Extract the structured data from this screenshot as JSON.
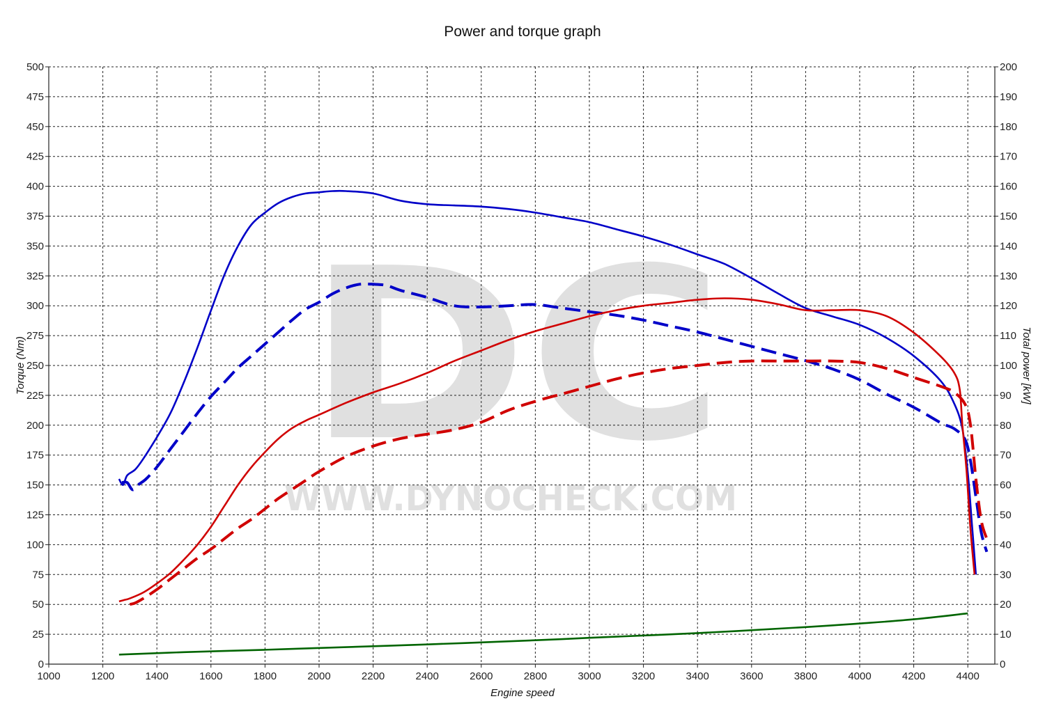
{
  "chart_data": {
    "type": "line",
    "title": "Power and torque graph",
    "xlabel": "Engine speed",
    "ylabel_left": "Torque (Nm)",
    "ylabel_right": "Total power [kW]",
    "xlim": [
      1000,
      4500
    ],
    "ylim_left": [
      0,
      500
    ],
    "ylim_right": [
      0,
      200
    ],
    "x_ticks": [
      1000,
      1200,
      1400,
      1600,
      1800,
      2000,
      2200,
      2400,
      2600,
      2800,
      3000,
      3200,
      3400,
      3600,
      3800,
      4000,
      4200,
      4400
    ],
    "y_ticks_left": [
      0,
      25,
      50,
      75,
      100,
      125,
      150,
      175,
      200,
      225,
      250,
      275,
      300,
      325,
      350,
      375,
      400,
      425,
      450,
      475,
      500
    ],
    "y_ticks_right": [
      0,
      10,
      20,
      30,
      40,
      50,
      60,
      70,
      80,
      90,
      100,
      110,
      120,
      130,
      140,
      150,
      160,
      170,
      180,
      190,
      200
    ],
    "grid": true,
    "watermark": {
      "logo": "DC",
      "url": "WWW.DYNOCHECK.COM"
    },
    "series": [
      {
        "axis": "left",
        "color": "#0000c8",
        "dash": false,
        "points": [
          [
            1260,
            155
          ],
          [
            1275,
            150
          ],
          [
            1290,
            158
          ],
          [
            1320,
            163
          ],
          [
            1350,
            172
          ],
          [
            1400,
            190
          ],
          [
            1450,
            210
          ],
          [
            1500,
            236
          ],
          [
            1550,
            265
          ],
          [
            1600,
            296
          ],
          [
            1650,
            326
          ],
          [
            1700,
            350
          ],
          [
            1750,
            368
          ],
          [
            1800,
            378
          ],
          [
            1850,
            386
          ],
          [
            1900,
            391
          ],
          [
            1950,
            394
          ],
          [
            2000,
            395
          ],
          [
            2050,
            396
          ],
          [
            2100,
            396
          ],
          [
            2200,
            394
          ],
          [
            2300,
            388
          ],
          [
            2400,
            385
          ],
          [
            2500,
            384
          ],
          [
            2600,
            383
          ],
          [
            2700,
            381
          ],
          [
            2800,
            378
          ],
          [
            2900,
            374
          ],
          [
            3000,
            370
          ],
          [
            3100,
            364
          ],
          [
            3200,
            358
          ],
          [
            3300,
            351
          ],
          [
            3400,
            343
          ],
          [
            3500,
            335
          ],
          [
            3600,
            323
          ],
          [
            3700,
            310
          ],
          [
            3800,
            298
          ],
          [
            3900,
            291
          ],
          [
            4000,
            284
          ],
          [
            4100,
            273
          ],
          [
            4200,
            258
          ],
          [
            4300,
            237
          ],
          [
            4350,
            218
          ],
          [
            4380,
            197
          ],
          [
            4400,
            160
          ],
          [
            4415,
            118
          ],
          [
            4430,
            75
          ]
        ]
      },
      {
        "axis": "left",
        "color": "#0000c8",
        "dash": true,
        "points": [
          [
            1270,
            152
          ],
          [
            1290,
            152
          ],
          [
            1310,
            146
          ],
          [
            1330,
            150
          ],
          [
            1360,
            155
          ],
          [
            1400,
            165
          ],
          [
            1450,
            180
          ],
          [
            1500,
            195
          ],
          [
            1550,
            210
          ],
          [
            1600,
            224
          ],
          [
            1650,
            236
          ],
          [
            1700,
            248
          ],
          [
            1750,
            258
          ],
          [
            1800,
            268
          ],
          [
            1850,
            278
          ],
          [
            1900,
            288
          ],
          [
            1950,
            297
          ],
          [
            2000,
            303
          ],
          [
            2050,
            310
          ],
          [
            2100,
            315
          ],
          [
            2150,
            318
          ],
          [
            2200,
            318
          ],
          [
            2250,
            317
          ],
          [
            2300,
            313
          ],
          [
            2400,
            307
          ],
          [
            2500,
            300
          ],
          [
            2600,
            299
          ],
          [
            2700,
            300
          ],
          [
            2800,
            301
          ],
          [
            2900,
            298
          ],
          [
            3000,
            295
          ],
          [
            3100,
            292
          ],
          [
            3200,
            288
          ],
          [
            3300,
            283
          ],
          [
            3400,
            278
          ],
          [
            3500,
            272
          ],
          [
            3600,
            266
          ],
          [
            3700,
            260
          ],
          [
            3800,
            254
          ],
          [
            3900,
            247
          ],
          [
            4000,
            238
          ],
          [
            4100,
            226
          ],
          [
            4200,
            215
          ],
          [
            4300,
            202
          ],
          [
            4350,
            197
          ],
          [
            4390,
            188
          ],
          [
            4410,
            170
          ],
          [
            4430,
            140
          ],
          [
            4450,
            110
          ],
          [
            4470,
            94
          ]
        ]
      },
      {
        "axis": "right",
        "color": "#d00000",
        "dash": false,
        "points": [
          [
            1260,
            21
          ],
          [
            1280,
            21.5
          ],
          [
            1300,
            22
          ],
          [
            1350,
            24
          ],
          [
            1400,
            27
          ],
          [
            1450,
            30.5
          ],
          [
            1500,
            35
          ],
          [
            1550,
            40
          ],
          [
            1600,
            46
          ],
          [
            1650,
            53
          ],
          [
            1700,
            60
          ],
          [
            1750,
            66
          ],
          [
            1800,
            71
          ],
          [
            1850,
            75.5
          ],
          [
            1900,
            79
          ],
          [
            1950,
            81.5
          ],
          [
            2000,
            83.5
          ],
          [
            2100,
            87.5
          ],
          [
            2200,
            91
          ],
          [
            2300,
            94
          ],
          [
            2400,
            97.5
          ],
          [
            2500,
            101.5
          ],
          [
            2600,
            105
          ],
          [
            2700,
            108.5
          ],
          [
            2800,
            111.5
          ],
          [
            2900,
            114
          ],
          [
            3000,
            116.5
          ],
          [
            3100,
            118.5
          ],
          [
            3200,
            120
          ],
          [
            3300,
            121
          ],
          [
            3400,
            122
          ],
          [
            3500,
            122.5
          ],
          [
            3600,
            122
          ],
          [
            3700,
            120.5
          ],
          [
            3800,
            118.5
          ],
          [
            3900,
            118.5
          ],
          [
            4000,
            118.5
          ],
          [
            4100,
            116.5
          ],
          [
            4200,
            111
          ],
          [
            4300,
            103
          ],
          [
            4350,
            97.5
          ],
          [
            4370,
            92
          ],
          [
            4380,
            80
          ],
          [
            4395,
            65
          ],
          [
            4410,
            45
          ],
          [
            4425,
            30
          ]
        ]
      },
      {
        "axis": "right",
        "color": "#d00000",
        "dash": true,
        "points": [
          [
            1300,
            20
          ],
          [
            1320,
            20.5
          ],
          [
            1350,
            22
          ],
          [
            1400,
            25
          ],
          [
            1450,
            28.5
          ],
          [
            1500,
            32
          ],
          [
            1550,
            35.5
          ],
          [
            1600,
            38.5
          ],
          [
            1650,
            42
          ],
          [
            1700,
            45.5
          ],
          [
            1750,
            48.5
          ],
          [
            1800,
            52
          ],
          [
            1850,
            55.5
          ],
          [
            1900,
            58.5
          ],
          [
            1950,
            61.5
          ],
          [
            2000,
            64.5
          ],
          [
            2100,
            69.5
          ],
          [
            2200,
            73
          ],
          [
            2300,
            75.5
          ],
          [
            2400,
            77
          ],
          [
            2500,
            78.5
          ],
          [
            2600,
            81
          ],
          [
            2700,
            85
          ],
          [
            2800,
            88
          ],
          [
            2900,
            90.5
          ],
          [
            3000,
            93
          ],
          [
            3100,
            95.5
          ],
          [
            3200,
            97.5
          ],
          [
            3300,
            99
          ],
          [
            3400,
            100
          ],
          [
            3500,
            101
          ],
          [
            3600,
            101.5
          ],
          [
            3700,
            101.5
          ],
          [
            3800,
            101.5
          ],
          [
            3900,
            101.5
          ],
          [
            4000,
            101
          ],
          [
            4100,
            99
          ],
          [
            4200,
            96
          ],
          [
            4300,
            93
          ],
          [
            4350,
            91
          ],
          [
            4390,
            87
          ],
          [
            4410,
            80
          ],
          [
            4430,
            62
          ],
          [
            4450,
            48
          ],
          [
            4470,
            42
          ]
        ]
      },
      {
        "axis": "left",
        "color": "#006400",
        "dash": false,
        "points": [
          [
            1260,
            8
          ],
          [
            1500,
            10
          ],
          [
            1800,
            12
          ],
          [
            2000,
            13.5
          ],
          [
            2400,
            16.5
          ],
          [
            2800,
            20
          ],
          [
            3000,
            22
          ],
          [
            3400,
            26
          ],
          [
            3800,
            31
          ],
          [
            4000,
            34
          ],
          [
            4200,
            37.5
          ],
          [
            4400,
            42.5
          ]
        ]
      }
    ]
  }
}
